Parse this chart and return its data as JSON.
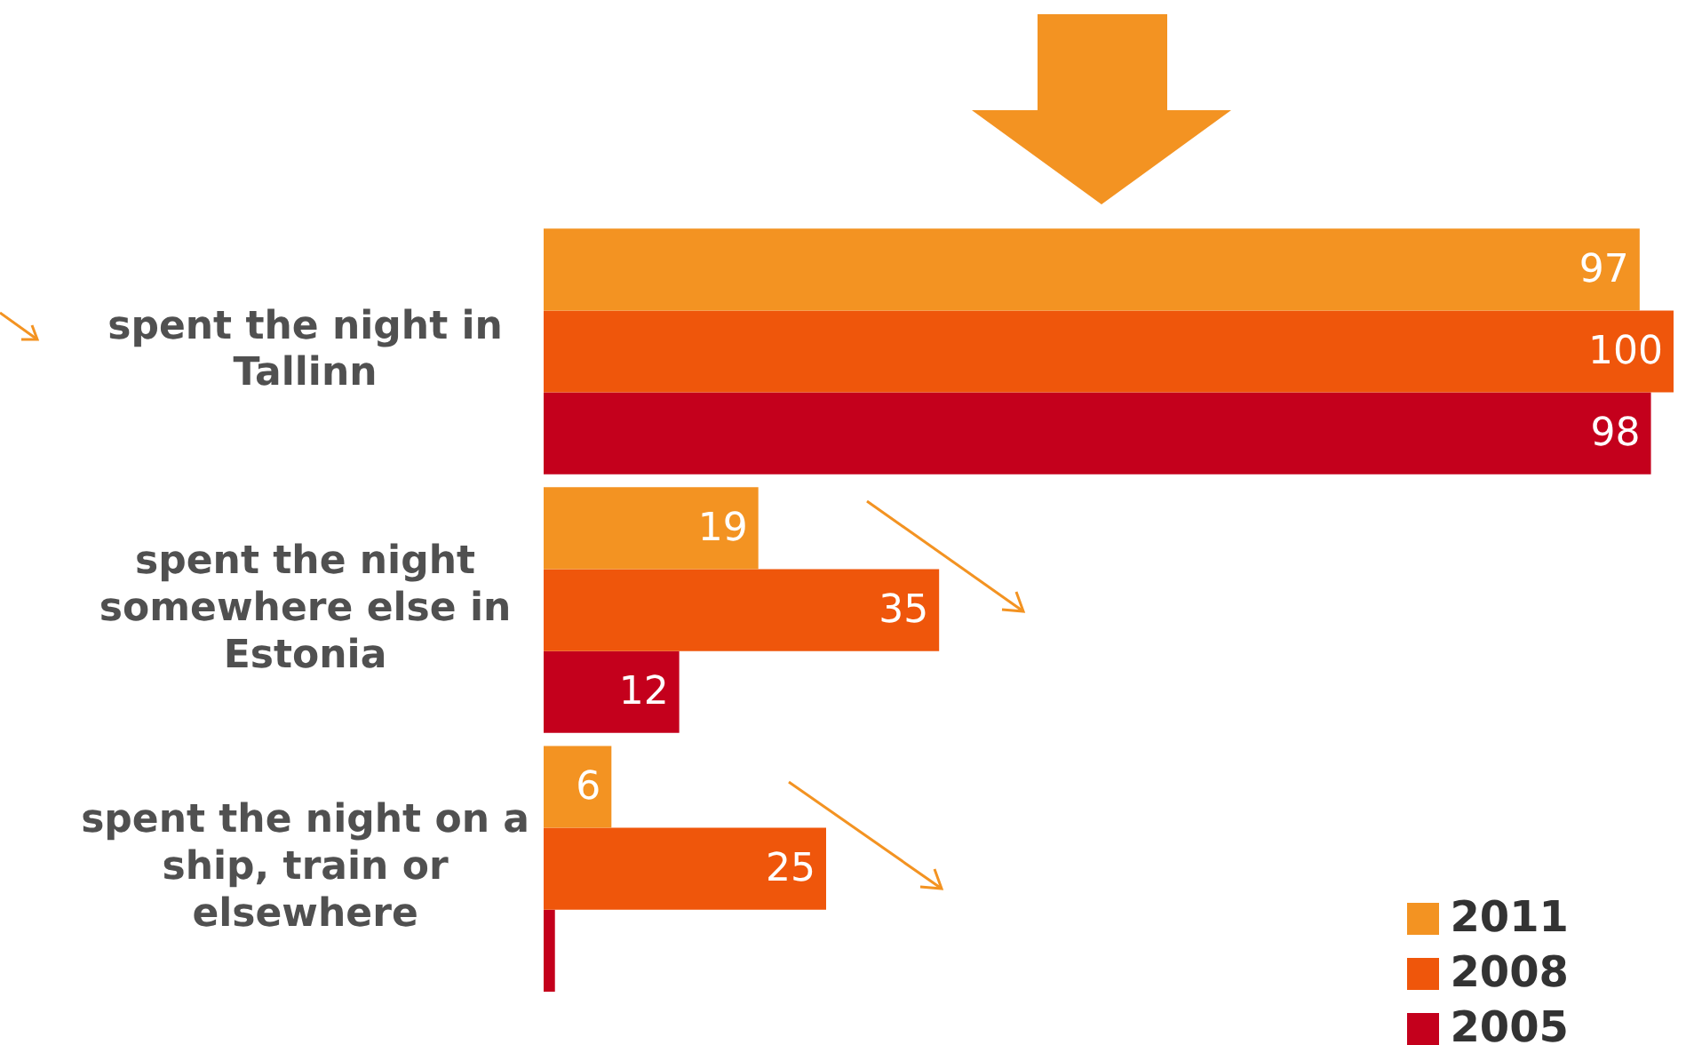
{
  "chart_data": {
    "type": "bar",
    "orientation": "horizontal",
    "categories": [
      "spent the night in Tallinn",
      "spent the night somewhere else in Estonia",
      "spent the night on a ship, train or elsewhere"
    ],
    "series": [
      {
        "name": "2011",
        "color": "#f39322",
        "values": [
          97,
          19,
          6
        ],
        "value_labels": [
          "97",
          "19",
          "6"
        ]
      },
      {
        "name": "2008",
        "color": "#ef560b",
        "values": [
          100,
          35,
          25
        ],
        "value_labels": [
          "100",
          "35",
          "25"
        ]
      },
      {
        "name": "2005",
        "color": "#c4001c",
        "values": [
          98,
          12,
          1
        ],
        "value_labels": [
          "98",
          "12",
          null
        ]
      }
    ],
    "legend": "bottom right"
  }
}
